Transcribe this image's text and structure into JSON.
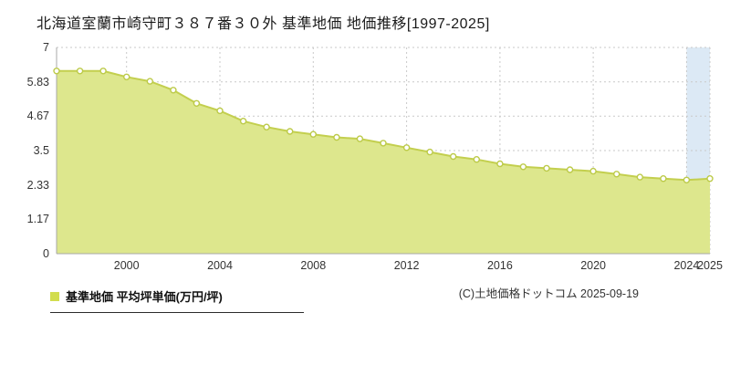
{
  "page": {
    "title": "北海道室蘭市崎守町３８７番３０外 基準地価 地価推移[1997-2025]",
    "legend": {
      "label": "基準地価 平均坪単価(万円/坪)",
      "marker_color": "#d2dd4e"
    },
    "copyright": "(C)土地価格ドットコム 2025-09-19"
  },
  "chart_data": {
    "type": "area",
    "title": "北海道室蘭市崎守町３８７番３０外 基準地価 地価推移[1997-2025]",
    "xlabel": "",
    "ylabel": "基準地価 平均坪単価(万円/坪)",
    "x": [
      1997,
      1998,
      1999,
      2000,
      2001,
      2002,
      2003,
      2004,
      2005,
      2006,
      2007,
      2008,
      2009,
      2010,
      2011,
      2012,
      2013,
      2014,
      2015,
      2016,
      2017,
      2018,
      2019,
      2020,
      2021,
      2022,
      2023,
      2024,
      2025
    ],
    "values": [
      6.2,
      6.2,
      6.2,
      6.0,
      5.85,
      5.55,
      5.1,
      4.85,
      4.5,
      4.3,
      4.15,
      4.05,
      3.95,
      3.9,
      3.75,
      3.6,
      3.45,
      3.3,
      3.2,
      3.05,
      2.95,
      2.9,
      2.85,
      2.8,
      2.7,
      2.6,
      2.55,
      2.5,
      2.55
    ],
    "ylim": [
      0,
      7
    ],
    "yticks": [
      0,
      1.17,
      2.33,
      3.5,
      4.67,
      5.83,
      7
    ],
    "ytick_labels": [
      "0",
      "1.17",
      "2.33",
      "3.5",
      "4.67",
      "5.83",
      "7"
    ],
    "xticks": [
      2000,
      2004,
      2008,
      2012,
      2016,
      2020,
      2024,
      2025
    ],
    "grid": true,
    "legend_position": "bottom-left",
    "highlight_band_x": [
      2024,
      2025
    ],
    "colors": {
      "area": "#dde78d",
      "line": "#c3cf4e",
      "marker_fill": "#ffffff",
      "marker_stroke": "#bcca48",
      "band": "#dce9f5",
      "grid": "#c9c9c9",
      "axis": "#a8a8a8",
      "tick_text": "#333333"
    }
  }
}
